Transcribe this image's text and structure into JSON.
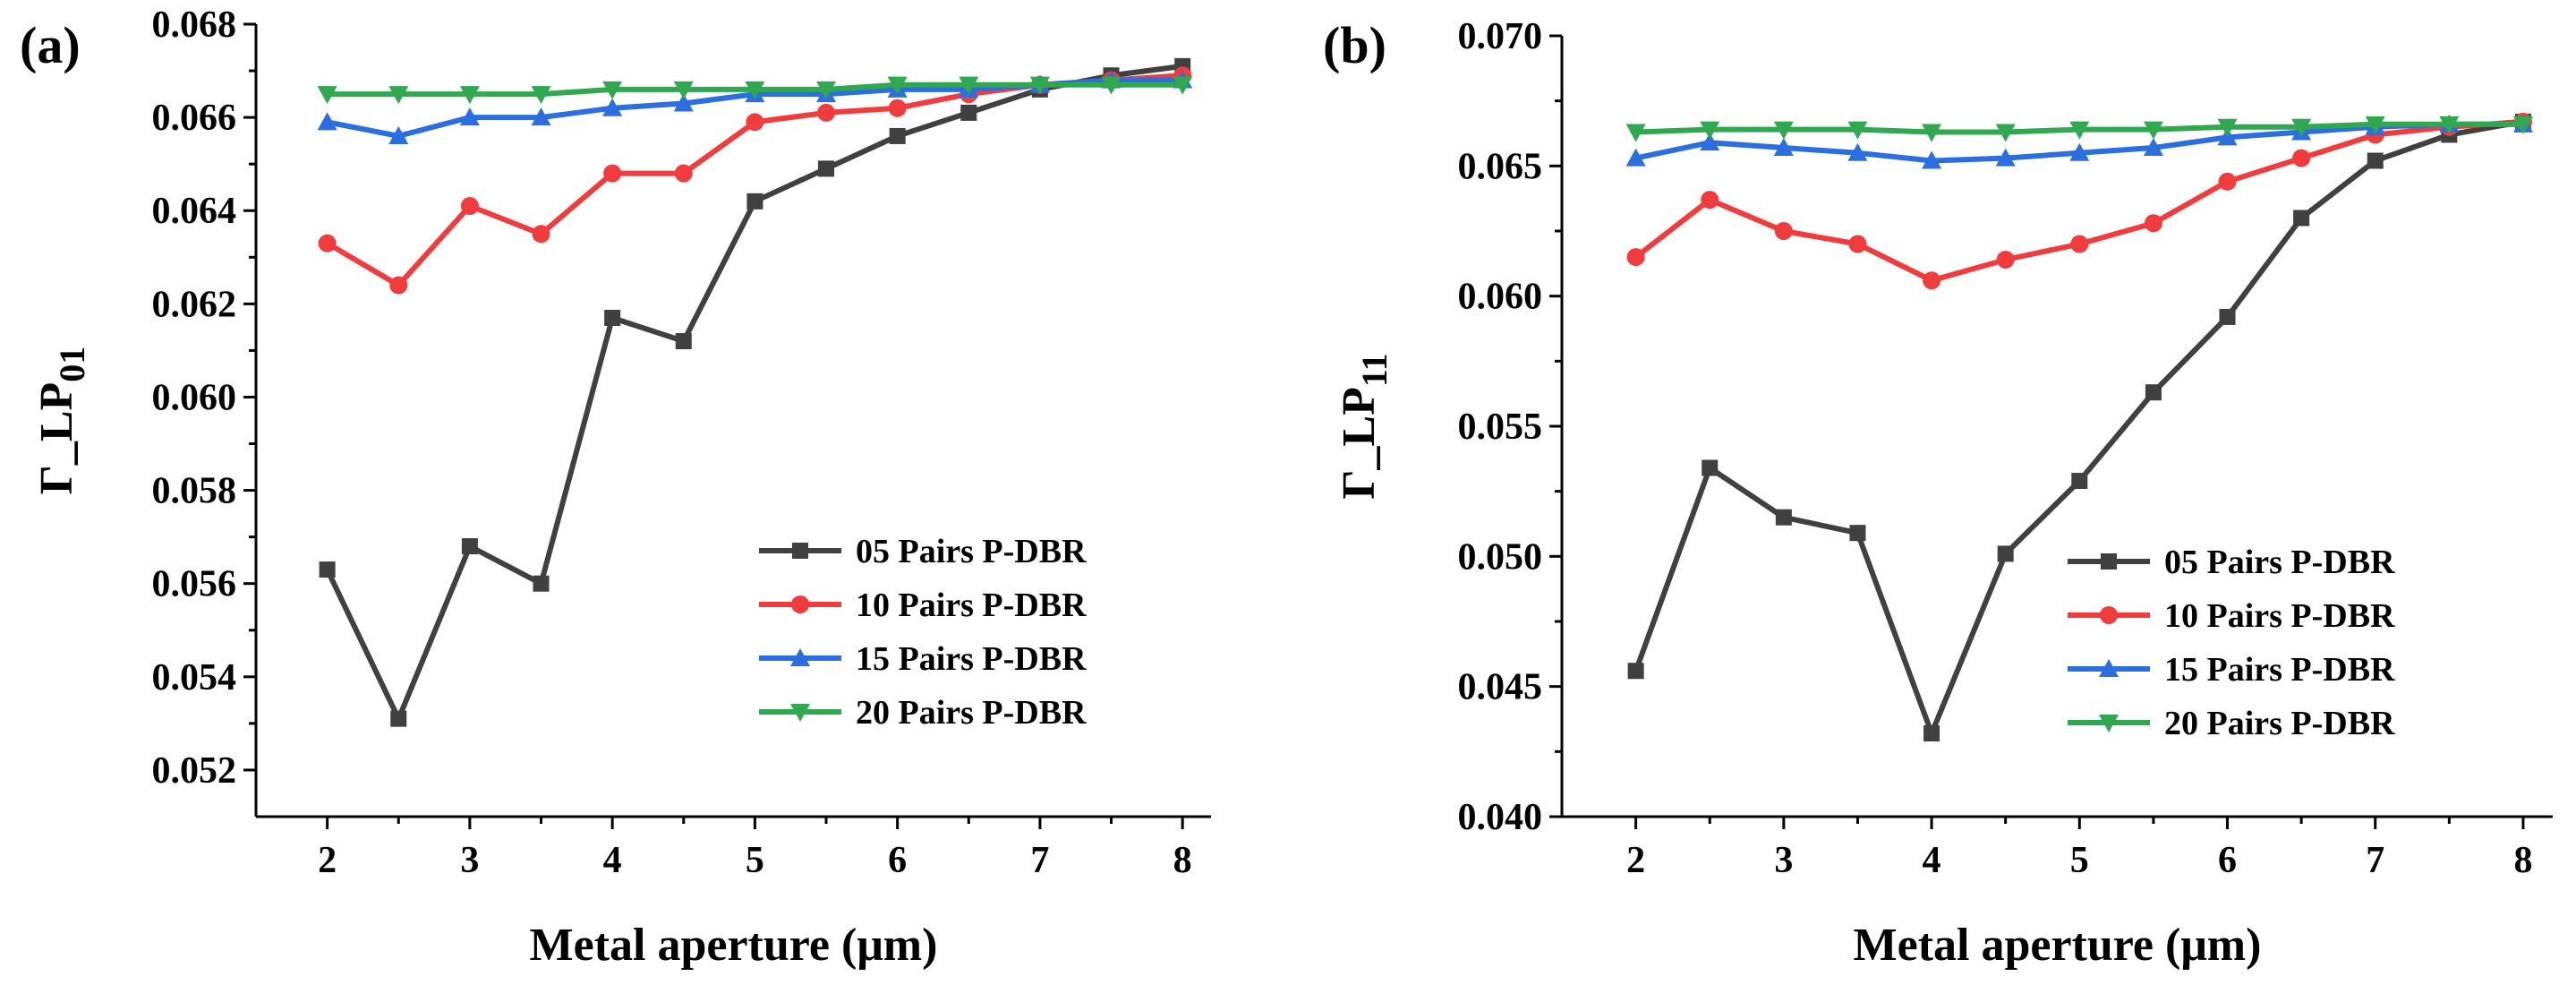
{
  "chart_data": [
    {
      "type": "line",
      "panel_label": "(a)",
      "xlabel": "Metal aperture (μm)",
      "ylabel": "Γ_LP",
      "ylabel_sub": "01",
      "xlim": [
        1.5,
        8.2
      ],
      "ylim": [
        0.051,
        0.068
      ],
      "xticks": [
        2,
        3,
        4,
        5,
        6,
        7,
        8
      ],
      "xtick_labels": [
        "2",
        "3",
        "4",
        "5",
        "6",
        "7",
        "8"
      ],
      "yticks": [
        0.052,
        0.054,
        0.056,
        0.058,
        0.06,
        0.062,
        0.064,
        0.066,
        0.068
      ],
      "ytick_labels": [
        "0.052",
        "0.054",
        "0.056",
        "0.058",
        "0.060",
        "0.062",
        "0.064",
        "0.066",
        "0.068"
      ],
      "legend_position": "bottom-right",
      "x": [
        2,
        2.5,
        3,
        3.5,
        4,
        4.5,
        5,
        5.5,
        6,
        6.5,
        7,
        7.5,
        8
      ],
      "series": [
        {
          "name": "05 Pairs P-DBR",
          "color": "#404040",
          "marker": "square",
          "values": [
            0.0563,
            0.0531,
            0.0568,
            0.056,
            0.0617,
            0.0612,
            0.0642,
            0.0649,
            0.0656,
            0.0661,
            0.0666,
            0.0669,
            0.0671
          ]
        },
        {
          "name": "10 Pairs P-DBR",
          "color": "#f03c3c",
          "marker": "circle",
          "values": [
            0.0633,
            0.0624,
            0.0641,
            0.0635,
            0.0648,
            0.0648,
            0.0659,
            0.0661,
            0.0662,
            0.0665,
            0.0667,
            0.0668,
            0.0669
          ]
        },
        {
          "name": "15 Pairs P-DBR",
          "color": "#2a6ee0",
          "marker": "triangle-up",
          "values": [
            0.0659,
            0.0656,
            0.066,
            0.066,
            0.0662,
            0.0663,
            0.0665,
            0.0665,
            0.0666,
            0.0666,
            0.0667,
            0.0668,
            0.0668
          ]
        },
        {
          "name": "20 Pairs P-DBR",
          "color": "#2fa84f",
          "marker": "triangle-down",
          "values": [
            0.0665,
            0.0665,
            0.0665,
            0.0665,
            0.0666,
            0.0666,
            0.0666,
            0.0666,
            0.0667,
            0.0667,
            0.0667,
            0.0667,
            0.0667
          ]
        }
      ]
    },
    {
      "type": "line",
      "panel_label": "(b)",
      "xlabel": "Metal aperture (μm)",
      "ylabel": "Γ_LP",
      "ylabel_sub": "11",
      "xlim": [
        1.5,
        8.2
      ],
      "ylim": [
        0.04,
        0.07
      ],
      "xticks": [
        2,
        3,
        4,
        5,
        6,
        7,
        8
      ],
      "xtick_labels": [
        "2",
        "3",
        "4",
        "5",
        "6",
        "7",
        "8"
      ],
      "yticks": [
        0.04,
        0.045,
        0.05,
        0.055,
        0.06,
        0.065,
        0.07
      ],
      "ytick_labels": [
        "0.040",
        "0.045",
        "0.050",
        "0.055",
        "0.060",
        "0.065",
        "0.070"
      ],
      "legend_position": "bottom-right",
      "x": [
        2,
        2.5,
        3,
        3.5,
        4,
        4.5,
        5,
        5.5,
        6,
        6.5,
        7,
        7.5,
        8
      ],
      "series": [
        {
          "name": "05 Pairs P-DBR",
          "color": "#404040",
          "marker": "square",
          "values": [
            0.0456,
            0.0534,
            0.0515,
            0.0509,
            0.0432,
            0.0501,
            0.0529,
            0.0563,
            0.0592,
            0.063,
            0.0652,
            0.0662,
            0.0667
          ]
        },
        {
          "name": "10 Pairs P-DBR",
          "color": "#f03c3c",
          "marker": "circle",
          "values": [
            0.0615,
            0.0637,
            0.0625,
            0.062,
            0.0606,
            0.0614,
            0.062,
            0.0628,
            0.0644,
            0.0653,
            0.0662,
            0.0665,
            0.0667
          ]
        },
        {
          "name": "15 Pairs P-DBR",
          "color": "#2a6ee0",
          "marker": "triangle-up",
          "values": [
            0.0653,
            0.0659,
            0.0657,
            0.0655,
            0.0652,
            0.0653,
            0.0655,
            0.0657,
            0.0661,
            0.0663,
            0.0665,
            0.0666,
            0.0666
          ]
        },
        {
          "name": "20 Pairs P-DBR",
          "color": "#2fa84f",
          "marker": "triangle-down",
          "values": [
            0.0663,
            0.0664,
            0.0664,
            0.0664,
            0.0663,
            0.0663,
            0.0664,
            0.0664,
            0.0665,
            0.0665,
            0.0666,
            0.0666,
            0.0666
          ]
        }
      ]
    }
  ]
}
